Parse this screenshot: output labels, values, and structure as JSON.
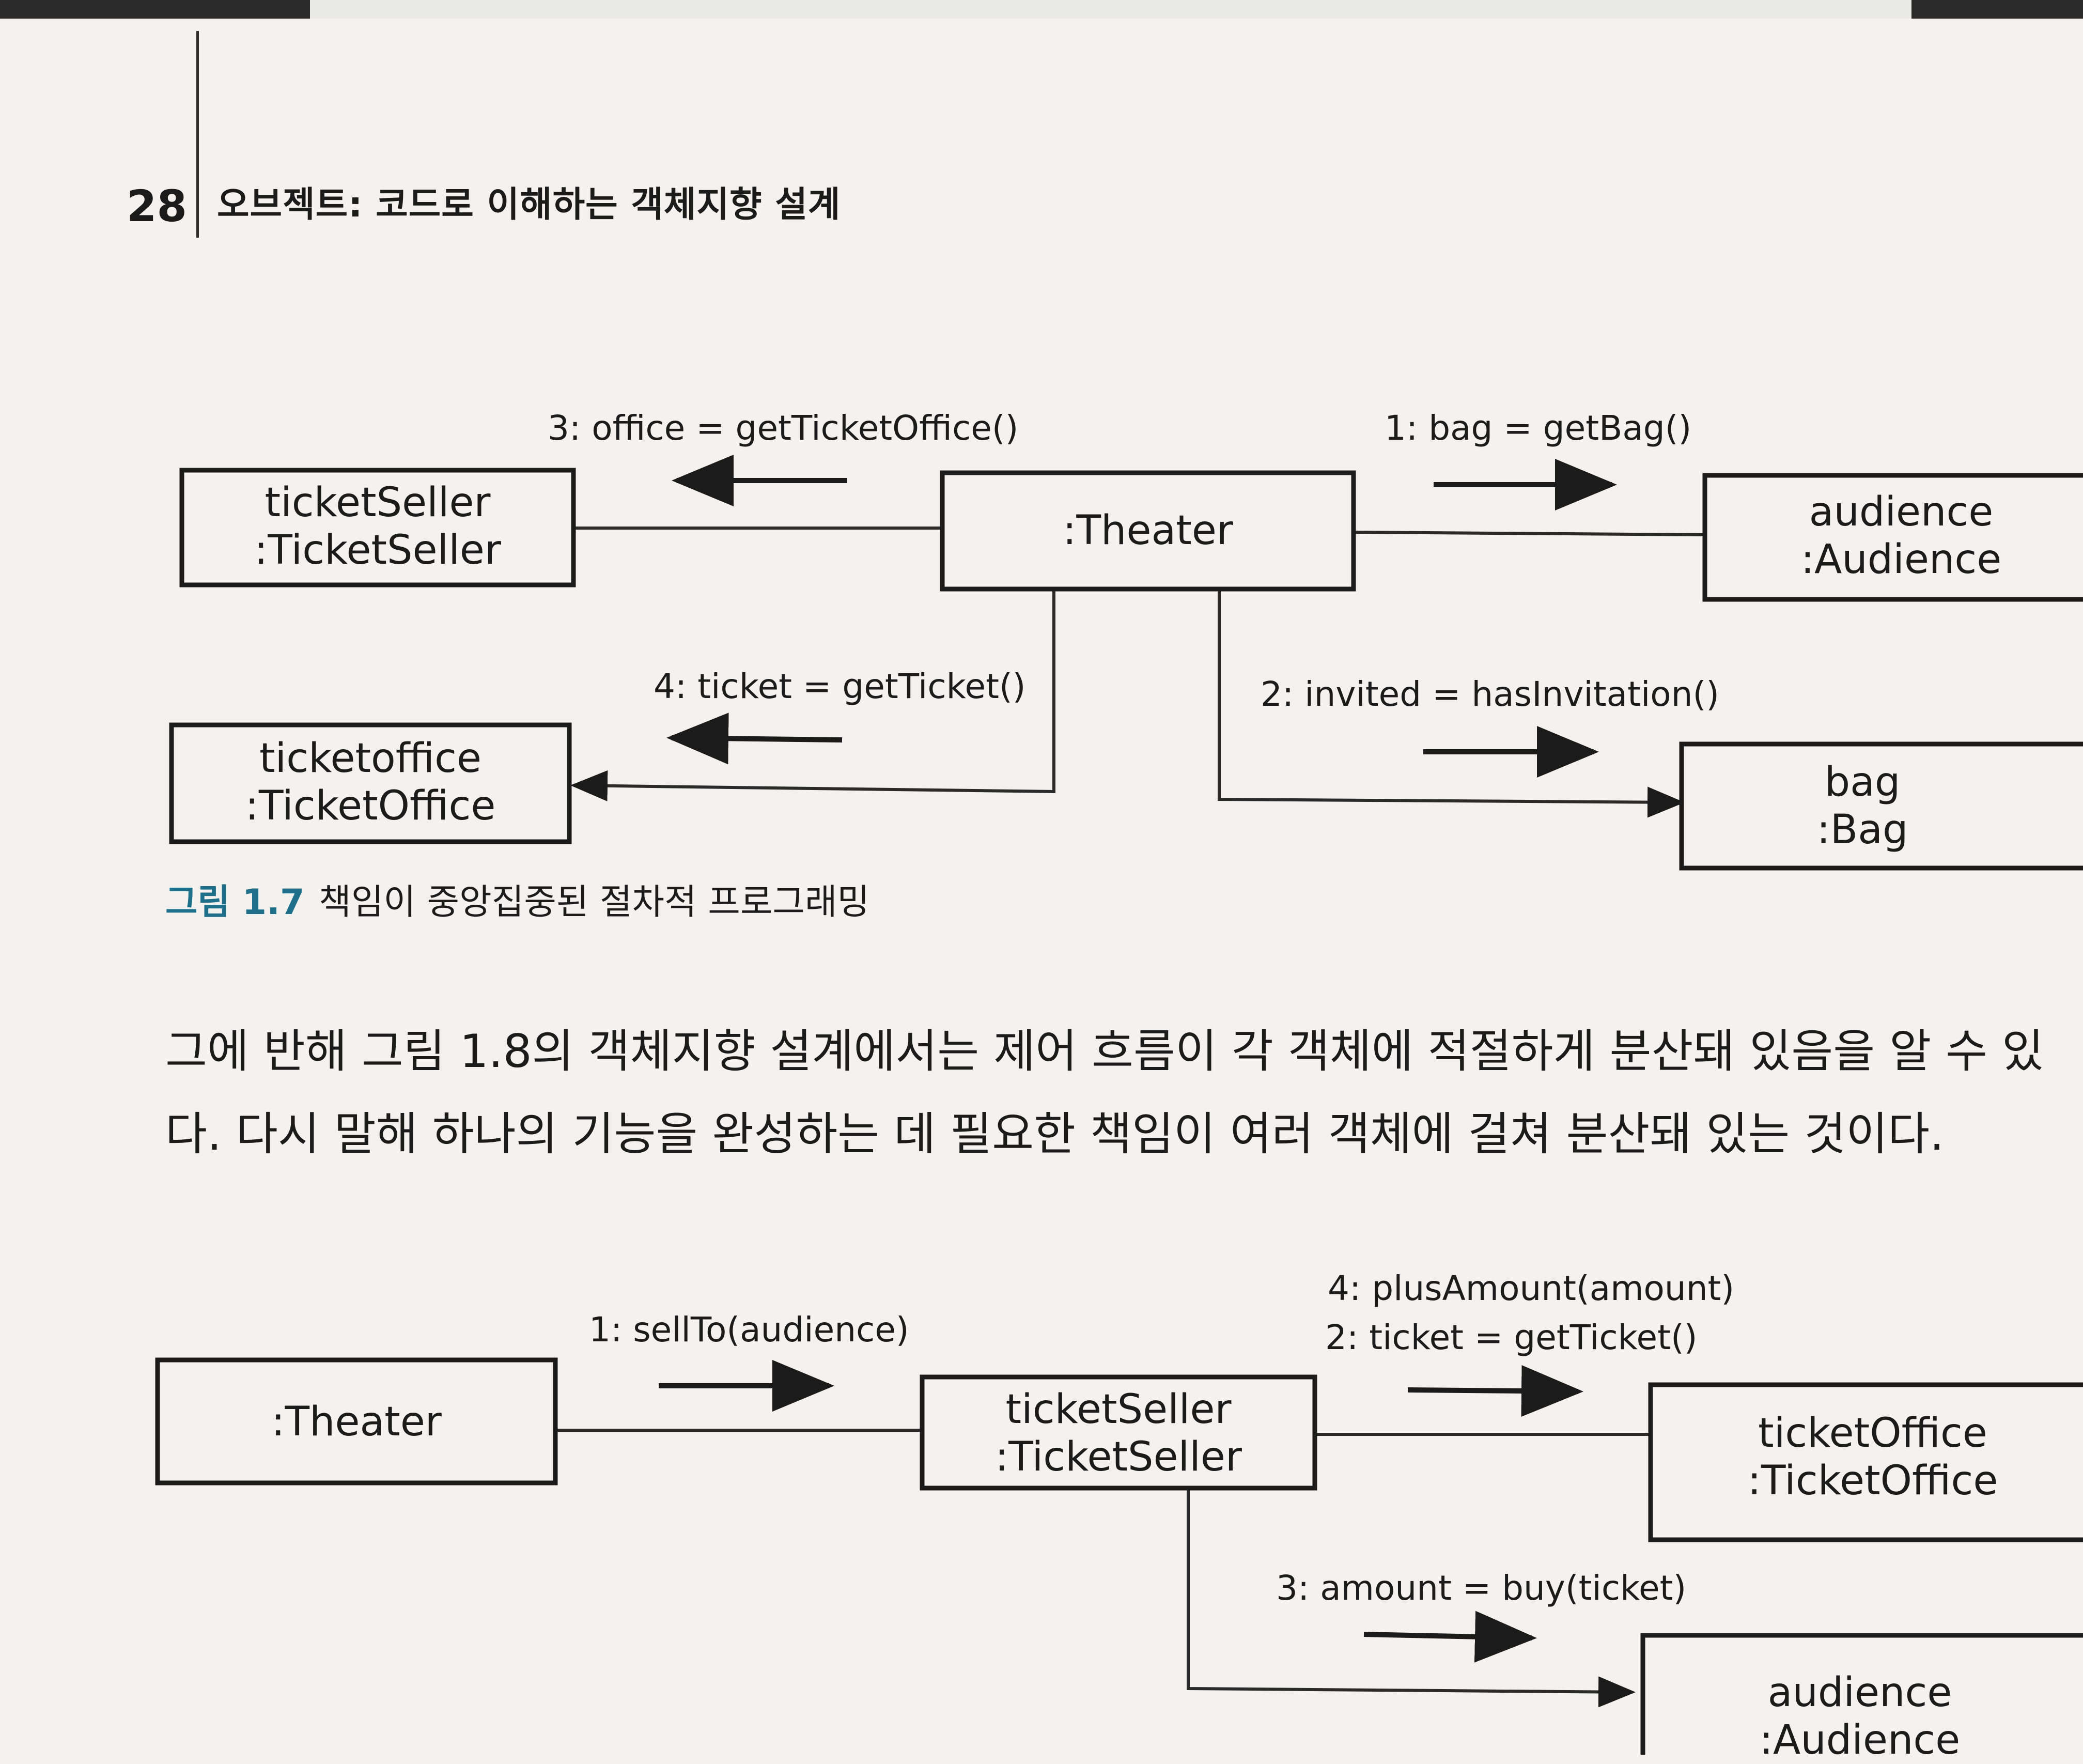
{
  "header": {
    "page_number": "28",
    "running_title": "오브젝트: 코드로 이해하는 객체지향 설계"
  },
  "figure_1_7": {
    "objects": {
      "theater": ":Theater",
      "ticket_seller": [
        "ticketSeller",
        ":TicketSeller"
      ],
      "ticket_office": [
        "ticketoffice",
        ":TicketOffice"
      ],
      "audience": [
        "audience",
        ":Audience"
      ],
      "bag": [
        "bag",
        ":Bag"
      ]
    },
    "messages": {
      "get_bag": "1: bag = getBag()",
      "has_invitation": "2: invited = hasInvitation()",
      "get_ticket_office": "3: office = getTicketOffice()",
      "get_ticket": "4: ticket = getTicket()"
    },
    "caption": {
      "number": "그림 1.7",
      "text": "책임이 중앙집중된 절차적 프로그래밍"
    }
  },
  "paragraph": {
    "line1": "그에 반해 그림 1.8의 객체지향 설계에서는 제어 흐름이 각 객체에 적절하게 분산돼 있음을 알 수 있",
    "line2": "다. 다시 말해 하나의 기능을 완성하는 데 필요한 책임이 여러 객체에 걸쳐 분산돼 있는 것이다."
  },
  "figure_1_8": {
    "objects": {
      "theater": ":Theater",
      "ticket_seller": [
        "ticketSeller",
        ":TicketSeller"
      ],
      "ticket_office": [
        "ticketOffice",
        ":TicketOffice"
      ],
      "audience": [
        "audience",
        ":Audience"
      ]
    },
    "messages": {
      "sell_to": "1: sellTo(audience)",
      "get_ticket": "2: ticket = getTicket()",
      "buy": "3: amount = buy(ticket)",
      "plus_amount": "4: plusAmount(amount)"
    }
  }
}
